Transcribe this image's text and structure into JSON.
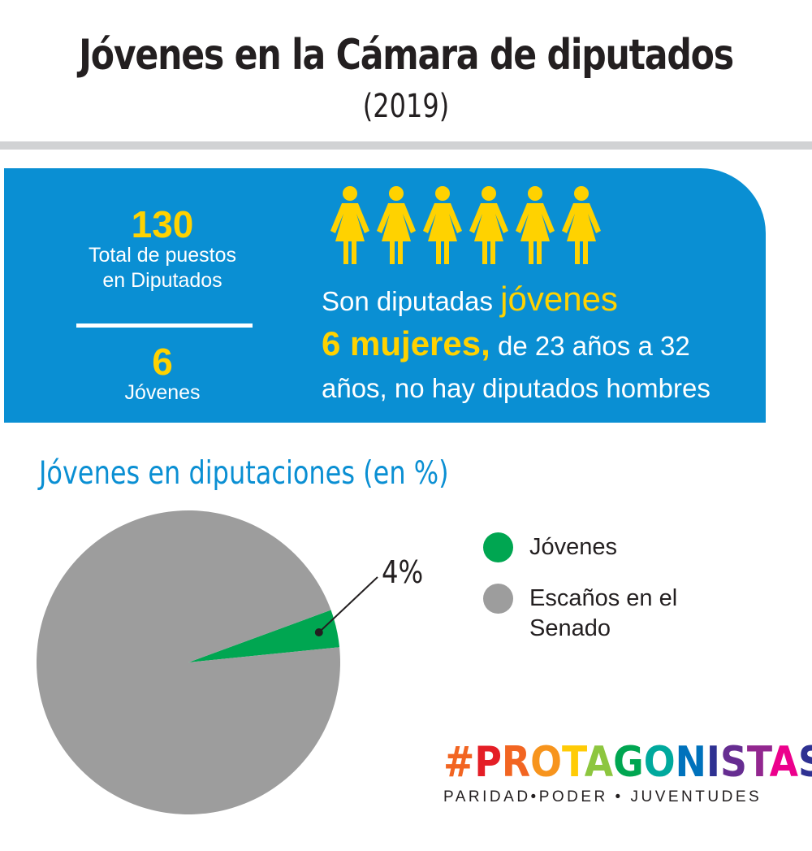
{
  "header": {
    "title": "Jóvenes en la Cámara de diputados",
    "year": "(2019)"
  },
  "stats": {
    "total_number": "130",
    "total_label_line1": "Total de puestos",
    "total_label_line2": "en Diputados",
    "young_number": "6",
    "young_label": "Jóvenes"
  },
  "summary": {
    "women_icon_count": 6,
    "line1_a": "Son diputadas ",
    "line1_b": "jóvenes",
    "line2_a": "6 mujeres,",
    "line2_b": " de 23 años a 32",
    "line3": "años, no hay diputados hombres"
  },
  "colors": {
    "panel_blue": "#0a8fd3",
    "accent_yellow": "#ffd200",
    "young_green": "#00a651",
    "seats_gray": "#9d9d9d"
  },
  "chart_data": {
    "type": "pie",
    "title": "Jóvenes en diputaciones (en %)",
    "slices": [
      {
        "name": "Jóvenes",
        "value": 4,
        "color": "#00a651"
      },
      {
        "name": "Escaños en el Senado",
        "value": 96,
        "color": "#9d9d9d"
      }
    ],
    "annotation": "4%",
    "legend_position": "right"
  },
  "brand": {
    "hashtag": "#",
    "letters": [
      "P",
      "R",
      "O",
      "T",
      "A",
      "G",
      "O",
      "N",
      "I",
      "S",
      "T",
      "A",
      "S"
    ],
    "letter_colors": [
      "#e41e26",
      "#f26522",
      "#f7941d",
      "#ffcb05",
      "#8dc63f",
      "#00a651",
      "#00a99d",
      "#0072bc",
      "#2e3192",
      "#662d91",
      "#92278f",
      "#ec008c",
      "#2e3192"
    ],
    "hashtag_color": "#f26522",
    "tagline": "PARIDAD•PODER • JUVENTUDES"
  }
}
